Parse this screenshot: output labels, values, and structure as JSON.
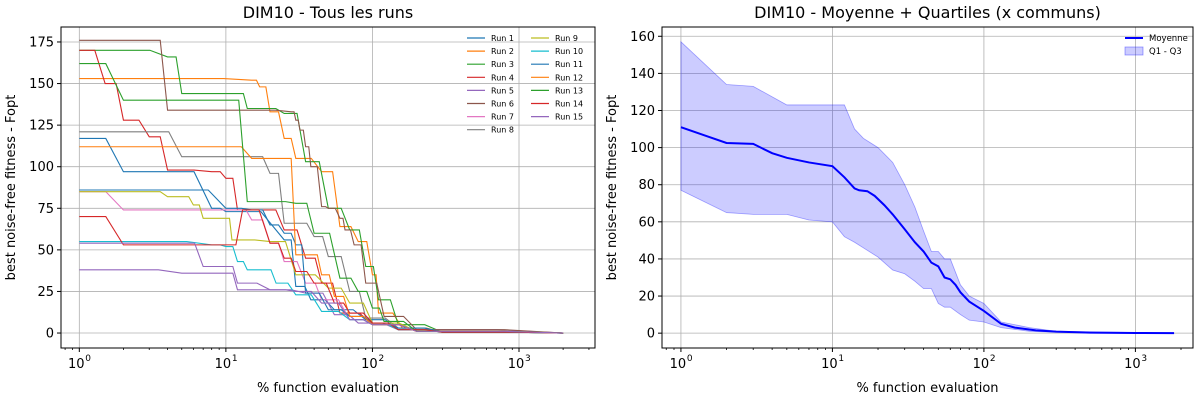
{
  "chart_data": [
    {
      "type": "line",
      "title": "DIM10 - Tous les runs",
      "xlabel": "% function evaluation",
      "ylabel": "best noise-free fitness - Fopt",
      "xscale": "log",
      "xlim": [
        0.75,
        3300
      ],
      "ylim": [
        -9,
        184
      ],
      "yticks": [
        0,
        25,
        50,
        75,
        100,
        125,
        150,
        175
      ],
      "ytick_labels": [
        "0",
        "25",
        "50",
        "75",
        "100",
        "125",
        "150",
        "175"
      ],
      "xticks": [
        1,
        10,
        100,
        1000
      ],
      "xtick_labels": [
        "10",
        "10",
        "10",
        "10"
      ],
      "xtick_exponents": [
        "0",
        "1",
        "2",
        "3"
      ],
      "grid": true,
      "legend_position": "top-right",
      "series": [
        {
          "name": "Run 1",
          "color": "#1f77b4",
          "x": [
            1,
            2,
            4,
            8,
            10,
            25,
            30,
            38,
            55,
            90,
            150,
            300,
            2000
          ],
          "y": [
            117,
            97,
            97,
            75,
            73,
            56,
            28,
            20,
            14,
            8,
            2,
            0.5,
            0
          ]
        },
        {
          "name": "Run 2",
          "color": "#ff7f0e",
          "x": [
            1,
            5,
            15,
            17,
            20,
            25,
            30,
            45,
            60,
            80,
            100,
            110,
            160,
            300,
            2000
          ],
          "y": [
            153,
            153,
            152,
            148,
            133,
            117,
            105,
            97,
            64,
            55,
            35,
            12,
            3,
            0.5,
            0
          ]
        },
        {
          "name": "Run 3",
          "color": "#2ca02c",
          "x": [
            1,
            2,
            4,
            5,
            12,
            14,
            18,
            25,
            35,
            50,
            70,
            90,
            110,
            150,
            300,
            2000
          ],
          "y": [
            170,
            170,
            166,
            144,
            144,
            135,
            135,
            132,
            103,
            75,
            62,
            40,
            20,
            5,
            0.5,
            0
          ]
        },
        {
          "name": "Run 4",
          "color": "#d62728",
          "x": [
            1,
            1.5,
            2,
            3,
            4,
            8,
            10,
            12,
            18,
            25,
            35,
            45,
            60,
            100,
            200,
            2000
          ],
          "y": [
            170,
            150,
            128,
            118,
            98,
            97,
            93,
            74,
            74,
            62,
            45,
            30,
            12,
            5,
            1,
            0
          ]
        },
        {
          "name": "Run 5",
          "color": "#9467bd",
          "x": [
            1,
            2,
            5,
            8,
            10,
            12,
            20,
            35,
            55,
            80,
            150,
            2000
          ],
          "y": [
            38,
            38,
            36,
            36,
            36,
            26,
            26,
            24,
            11,
            6,
            2,
            0
          ]
        },
        {
          "name": "Run 6",
          "color": "#8c564b",
          "x": [
            1,
            3,
            4,
            6,
            15,
            28,
            30,
            32,
            35,
            38,
            45,
            50,
            60,
            65,
            75,
            90,
            120,
            200,
            2000
          ],
          "y": [
            176,
            176,
            134,
            134,
            134,
            133,
            128,
            122,
            112,
            100,
            76,
            75,
            69,
            62,
            53,
            30,
            10,
            2,
            0
          ]
        },
        {
          "name": "Run 7",
          "color": "#e377c2",
          "x": [
            1,
            2,
            5,
            10,
            12,
            15,
            20,
            25,
            35,
            45,
            70,
            100,
            200,
            2000
          ],
          "y": [
            85,
            74,
            74,
            74,
            74,
            68,
            54,
            43,
            30,
            20,
            8,
            5,
            1,
            0
          ]
        },
        {
          "name": "Run 8",
          "color": "#7f7f7f",
          "x": [
            1,
            3,
            5,
            15,
            20,
            25,
            30,
            40,
            50,
            70,
            90,
            150,
            300,
            2000
          ],
          "y": [
            121,
            121,
            106,
            106,
            96,
            66,
            66,
            58,
            46,
            25,
            9,
            3,
            0.5,
            0
          ]
        },
        {
          "name": "Run 9",
          "color": "#bcbd22",
          "x": [
            1,
            3,
            4,
            5,
            6,
            7,
            10,
            11,
            20,
            30,
            50,
            70,
            100,
            200,
            2000
          ],
          "y": [
            85,
            85,
            82,
            82,
            77,
            69,
            69,
            56,
            55,
            35,
            27,
            18,
            6,
            1,
            0
          ]
        },
        {
          "name": "Run 10",
          "color": "#17becf",
          "x": [
            1,
            3,
            8,
            10,
            12,
            14,
            18,
            22,
            30,
            45,
            70,
            100,
            150,
            300,
            2000
          ],
          "y": [
            55,
            55,
            53,
            52,
            43,
            38,
            38,
            30,
            23,
            13,
            8,
            5,
            2,
            0.5,
            0
          ]
        },
        {
          "name": "Run 11",
          "color": "#1f77b4",
          "x": [
            1,
            2,
            5,
            10,
            15,
            20,
            25,
            30,
            35,
            50,
            70,
            100,
            150,
            300,
            2000
          ],
          "y": [
            86,
            86,
            86,
            75,
            74,
            65,
            60,
            53,
            24,
            14,
            10,
            6,
            3,
            0.5,
            0
          ]
        },
        {
          "name": "Run 12",
          "color": "#ff7f0e",
          "x": [
            1,
            5,
            10,
            15,
            25,
            30,
            38,
            45,
            55,
            70,
            100,
            200,
            2000
          ],
          "y": [
            112,
            112,
            112,
            105,
            105,
            47,
            47,
            35,
            22,
            10,
            5,
            1,
            0
          ]
        },
        {
          "name": "Run 13",
          "color": "#2ca02c",
          "x": [
            1,
            2,
            5,
            10,
            14,
            20,
            30,
            40,
            60,
            80,
            100,
            120,
            200,
            2000
          ],
          "y": [
            162,
            140,
            140,
            140,
            79,
            79,
            78,
            60,
            33,
            25,
            15,
            7,
            1,
            0
          ]
        },
        {
          "name": "Run 14",
          "color": "#d62728",
          "x": [
            1,
            2,
            5,
            10,
            13,
            20,
            25,
            30,
            40,
            55,
            70,
            100,
            150,
            300,
            2000
          ],
          "y": [
            70,
            53,
            53,
            53,
            74,
            54,
            45,
            37,
            30,
            18,
            12,
            6,
            2,
            0.5,
            0
          ]
        },
        {
          "name": "Run 15",
          "color": "#9467bd",
          "x": [
            1,
            2,
            5,
            7,
            10,
            12,
            20,
            30,
            45,
            70,
            100,
            200,
            2000
          ],
          "y": [
            54,
            54,
            54,
            40,
            40,
            30,
            26,
            25,
            18,
            8,
            5,
            1,
            0
          ]
        }
      ]
    },
    {
      "type": "line",
      "title": "DIM10 - Moyenne + Quartiles (x communs)",
      "xlabel": "% function evaluation",
      "ylabel": "best noise-free fitness - Fopt",
      "xscale": "log",
      "xlim": [
        0.75,
        2400
      ],
      "ylim": [
        -8,
        165
      ],
      "yticks": [
        0,
        20,
        40,
        60,
        80,
        100,
        120,
        140,
        160
      ],
      "ytick_labels": [
        "0",
        "20",
        "40",
        "60",
        "80",
        "100",
        "120",
        "140",
        "160"
      ],
      "xticks": [
        1,
        10,
        100,
        1000
      ],
      "xtick_labels": [
        "10",
        "10",
        "10",
        "10"
      ],
      "xtick_exponents": [
        "0",
        "1",
        "2",
        "3"
      ],
      "grid": true,
      "legend_position": "top-right",
      "series": [
        {
          "name": "Moyenne",
          "color": "#0000ff",
          "x": [
            1,
            1.5,
            2,
            3,
            4,
            5,
            7,
            10,
            12,
            14,
            15,
            17,
            19,
            22,
            25,
            30,
            35,
            40,
            45,
            50,
            55,
            60,
            65,
            70,
            80,
            100,
            130,
            160,
            220,
            300,
            500,
            1000,
            1800
          ],
          "y": [
            111,
            106,
            102.5,
            102,
            97,
            94.5,
            92,
            90,
            84,
            78,
            77,
            76.5,
            74,
            69,
            64,
            56,
            49,
            44,
            38,
            36,
            30,
            29,
            26,
            22,
            17,
            12,
            5,
            3,
            1.5,
            0.8,
            0.3,
            0.1,
            0
          ]
        },
        {
          "name": "Q1 - Q3",
          "color": "#0000ff",
          "x": [
            1,
            2,
            3,
            5,
            7,
            10,
            12,
            14,
            16,
            20,
            25,
            30,
            35,
            40,
            45,
            50,
            55,
            60,
            70,
            80,
            100,
            130,
            200,
            300,
            1800
          ],
          "q1": [
            77,
            65,
            64,
            64,
            61,
            60,
            52,
            49,
            46,
            41,
            34,
            32,
            28,
            24,
            24,
            16,
            14,
            14,
            10,
            7,
            6,
            3,
            1,
            0.5,
            0
          ],
          "q3": [
            157,
            134,
            133,
            123,
            123,
            123,
            123,
            110,
            105,
            100,
            92,
            80,
            68,
            55,
            44,
            44,
            40,
            40,
            26,
            20,
            16,
            6,
            3,
            1,
            0
          ]
        }
      ]
    }
  ]
}
